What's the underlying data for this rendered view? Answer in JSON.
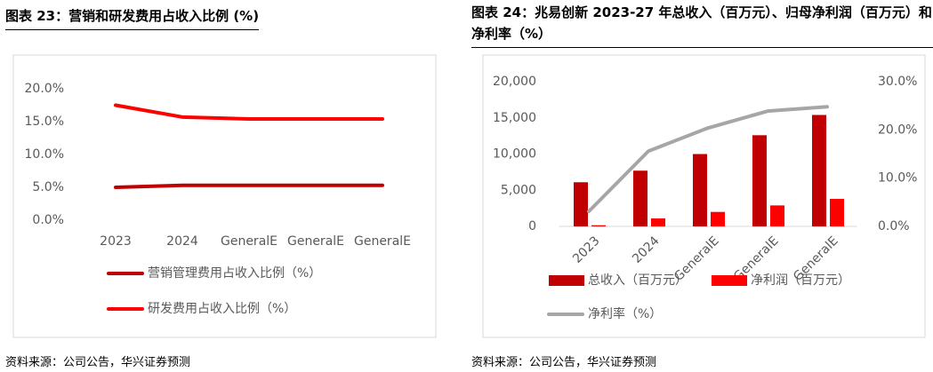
{
  "chart_data": [
    {
      "type": "line",
      "title": "图表 23：营销和研发费用占收入比例 (%)",
      "source": "资料来源：公司公告，华兴证券预测",
      "categories": [
        "2023",
        "2024",
        "GeneralE",
        "GeneralE",
        "GeneralE"
      ],
      "series": [
        {
          "name": "营销管理费用占收入比例（%）",
          "color": "#c00000",
          "values": [
            5.0,
            5.3,
            5.3,
            5.3,
            5.3
          ]
        },
        {
          "name": "研发费用占收入比例（%）",
          "color": "#ff0000",
          "values": [
            17.5,
            15.7,
            15.4,
            15.4,
            15.4
          ]
        }
      ],
      "ylim": [
        0,
        20
      ],
      "yticks": [
        {
          "value": 0,
          "label": "0.0%"
        },
        {
          "value": 5,
          "label": "5.0%"
        },
        {
          "value": 10,
          "label": "10.0%"
        },
        {
          "value": 15,
          "label": "15.0%"
        },
        {
          "value": 20,
          "label": "20.0%"
        }
      ],
      "grid": false
    },
    {
      "type": "bar",
      "title": "图表 24：兆易创新 2023-27 年总收入（百万元）、归母净利润（百万元）和净利率（%）",
      "source": "资料来源：公司公告，华兴证券预测",
      "categories": [
        "2023",
        "2024",
        "GeneralE",
        "GeneralE",
        "GeneralE"
      ],
      "series": [
        {
          "name": "总收入（百万元）",
          "color": "#c00000",
          "values": [
            6100,
            7700,
            10000,
            12600,
            15400
          ]
        },
        {
          "name": "净利润（百万元）",
          "color": "#ff0000",
          "values": [
            160,
            1100,
            2000,
            2900,
            3800
          ]
        },
        {
          "name": "净利率（%）",
          "color": "#a6a6a6",
          "type": "line",
          "axis": "y2",
          "values": [
            3.1,
            15.6,
            20.4,
            23.9,
            24.8
          ]
        }
      ],
      "ylim": [
        0,
        20000
      ],
      "yticks": [
        0,
        {
          "value": 5000,
          "label": "5,000"
        },
        {
          "value": 10000,
          "label": "10,000"
        },
        {
          "value": 15000,
          "label": "15,000"
        },
        {
          "value": 20000,
          "label": "20,000"
        }
      ],
      "y2lim": [
        0,
        30
      ],
      "y2ticks": [
        {
          "value": 0,
          "label": "0.0%"
        },
        {
          "value": 10,
          "label": "10.0%"
        },
        {
          "value": 20,
          "label": "20.0%"
        },
        {
          "value": 30,
          "label": "30.0%"
        }
      ],
      "grid": false
    }
  ]
}
